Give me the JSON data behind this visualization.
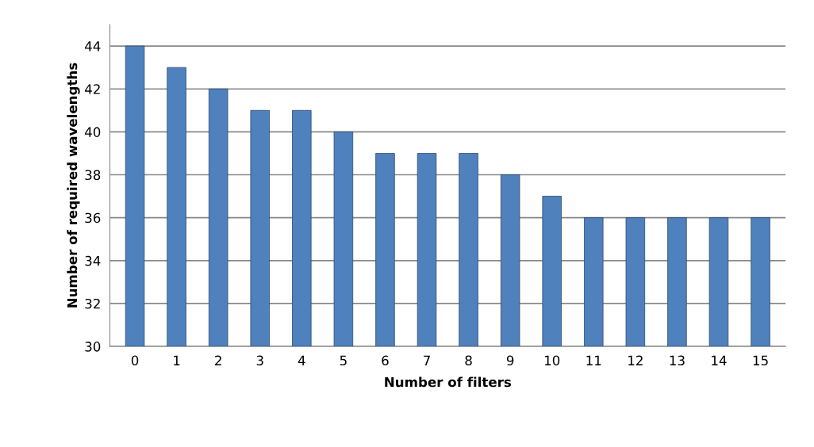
{
  "chart_data": {
    "type": "bar",
    "xlabel": "Number of filters",
    "ylabel": "Number of required wavelengths",
    "categories": [
      "0",
      "1",
      "2",
      "3",
      "4",
      "5",
      "6",
      "7",
      "8",
      "9",
      "10",
      "11",
      "12",
      "13",
      "14",
      "15"
    ],
    "values": [
      44,
      43,
      42,
      41,
      41,
      40,
      39,
      39,
      39,
      38,
      37,
      36,
      36,
      36,
      36,
      36
    ],
    "color": "#4f81bd",
    "ylim": [
      30,
      45
    ],
    "yticks": [
      30,
      32,
      34,
      36,
      38,
      40,
      42,
      44
    ],
    "grid": "y",
    "legend": false
  }
}
